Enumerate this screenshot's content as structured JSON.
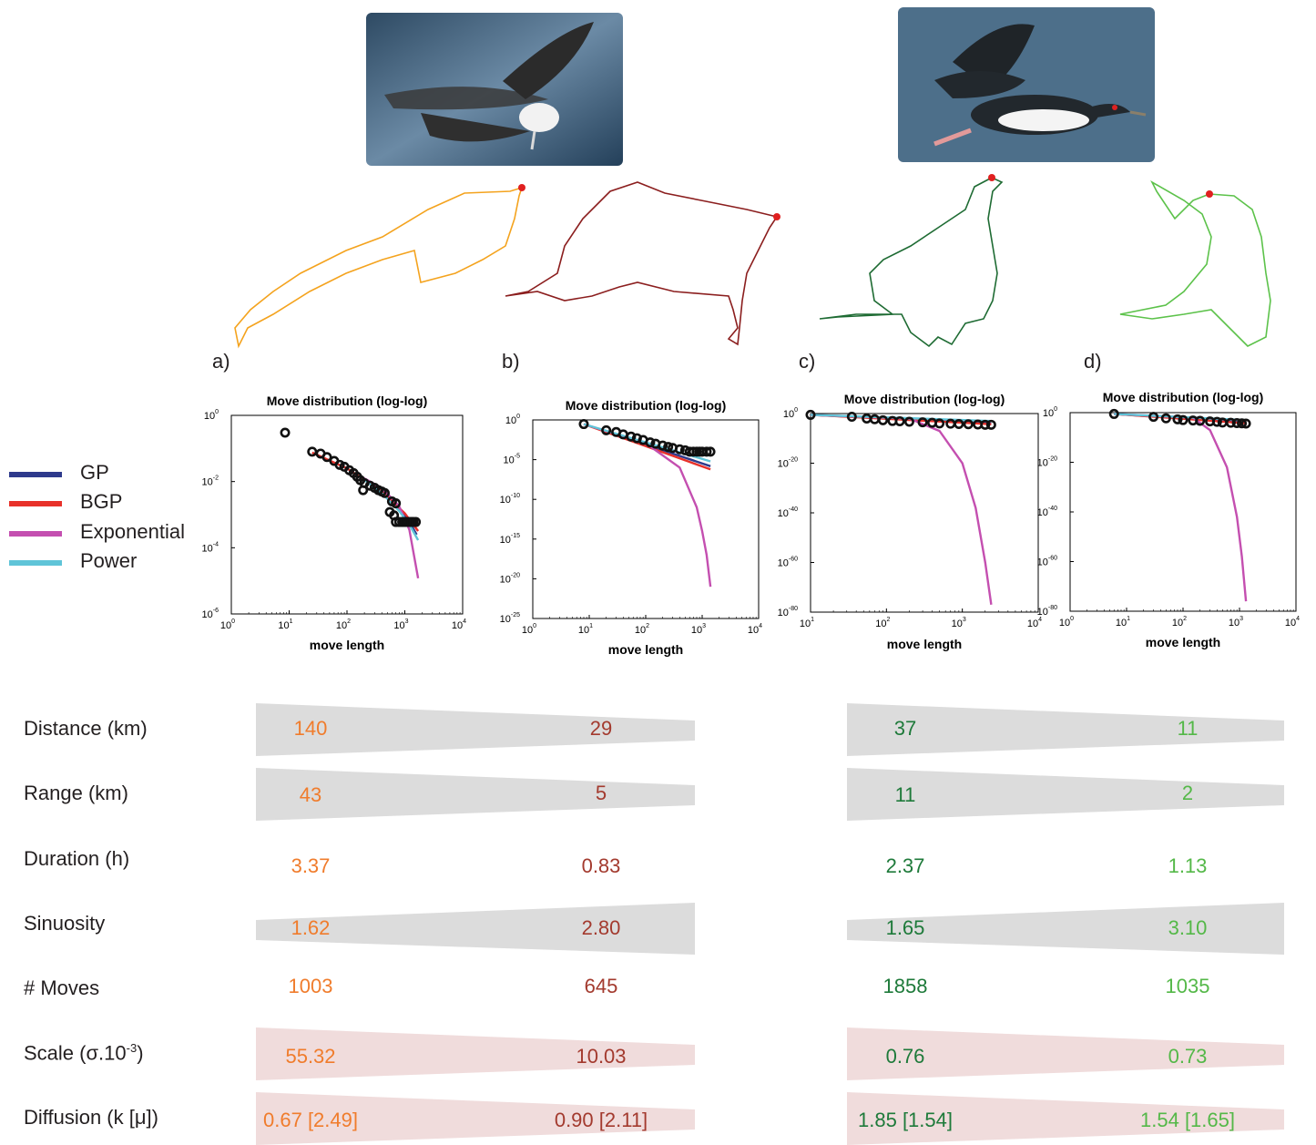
{
  "panels": [
    "a)",
    "b)",
    "c)",
    "d)"
  ],
  "legend": [
    {
      "label": "GP",
      "color": "#2e3a8c"
    },
    {
      "label": "BGP",
      "color": "#e8312a"
    },
    {
      "label": "Exponential",
      "color": "#c44fb0"
    },
    {
      "label": "Power",
      "color": "#5fc4d8"
    }
  ],
  "track_colors": [
    "#f4a31e",
    "#8b1e1e",
    "#1e6b33",
    "#5cc24a"
  ],
  "chart_data": [
    {
      "type": "scatter",
      "panel": "a)",
      "title": "Move distribution (log-log)",
      "xlabel": "move length",
      "ylabel": "",
      "xscale": "log",
      "yscale": "log",
      "xlim": [
        1,
        10000
      ],
      "ylim": [
        1e-06,
        1
      ],
      "xticks": [
        "10^0",
        "10^1",
        "10^2",
        "10^3",
        "10^4"
      ],
      "yticks": [
        "10^0",
        "10^-2",
        "10^-4",
        "10^-6"
      ],
      "points": [
        [
          8.5,
          0.3
        ],
        [
          25,
          0.08
        ],
        [
          35,
          0.07
        ],
        [
          45,
          0.055
        ],
        [
          60,
          0.042
        ],
        [
          75,
          0.032
        ],
        [
          90,
          0.028
        ],
        [
          110,
          0.022
        ],
        [
          130,
          0.018
        ],
        [
          150,
          0.014
        ],
        [
          170,
          0.011
        ],
        [
          200,
          0.009
        ],
        [
          250,
          0.0075
        ],
        [
          300,
          0.0065
        ],
        [
          350,
          0.0055
        ],
        [
          400,
          0.005
        ],
        [
          450,
          0.0045
        ],
        [
          190,
          0.0055
        ],
        [
          600,
          0.0025
        ],
        [
          700,
          0.0022
        ],
        [
          550,
          0.0012
        ],
        [
          650,
          0.00095
        ],
        [
          700,
          0.0006
        ],
        [
          800,
          0.0006
        ],
        [
          900,
          0.0006
        ],
        [
          1000,
          0.0006
        ],
        [
          1100,
          0.0006
        ],
        [
          1200,
          0.0006
        ],
        [
          1300,
          0.0006
        ],
        [
          1400,
          0.0006
        ],
        [
          1550,
          0.0006
        ]
      ],
      "series": [
        {
          "name": "GP",
          "x": [
            190,
            400,
            800,
            1200,
            1600
          ],
          "y": [
            0.012,
            0.0055,
            0.0016,
            0.0006,
            0.00025
          ]
        },
        {
          "name": "BGP",
          "x": [
            25,
            100,
            400,
            1000,
            1700
          ],
          "y": [
            0.075,
            0.025,
            0.005,
            0.0011,
            0.00032
          ]
        },
        {
          "name": "Exponential",
          "x": [
            190,
            400,
            800,
            1200,
            1700
          ],
          "y": [
            0.013,
            0.0065,
            0.0018,
            0.00035,
            1.2e-05
          ]
        },
        {
          "name": "Power",
          "x": [
            190,
            400,
            800,
            1200,
            1700
          ],
          "y": [
            0.012,
            0.0045,
            0.0013,
            0.0005,
            0.00017
          ]
        }
      ]
    },
    {
      "type": "scatter",
      "panel": "b)",
      "title": "Move distribution (log-log)",
      "xlabel": "move length",
      "ylabel": "",
      "xscale": "log",
      "yscale": "log",
      "xlim": [
        1,
        10000
      ],
      "ylim": [
        1e-25,
        1
      ],
      "xticks": [
        "10^0",
        "10^1",
        "10^2",
        "10^3",
        "10^4"
      ],
      "yticks": [
        "10^0",
        "10^-5",
        "10^-10",
        "10^-15",
        "10^-20",
        "10^-25"
      ],
      "points": [
        [
          8,
          0.3
        ],
        [
          20,
          0.05
        ],
        [
          30,
          0.03
        ],
        [
          40,
          0.015
        ],
        [
          55,
          0.008
        ],
        [
          70,
          0.005
        ],
        [
          90,
          0.003
        ],
        [
          120,
          0.0015
        ],
        [
          150,
          0.001
        ],
        [
          200,
          0.0006
        ],
        [
          250,
          0.0004
        ],
        [
          300,
          0.0003
        ],
        [
          400,
          0.0002
        ],
        [
          500,
          0.00015
        ],
        [
          600,
          0.0001
        ],
        [
          700,
          0.0001
        ],
        [
          800,
          0.0001
        ],
        [
          900,
          0.0001
        ],
        [
          1000,
          0.0001
        ],
        [
          1200,
          0.0001
        ],
        [
          1400,
          0.0001
        ]
      ],
      "series": [
        {
          "name": "GP",
          "x": [
            8,
            100,
            1400
          ],
          "y": [
            0.3,
            0.0008,
            1.5e-06
          ]
        },
        {
          "name": "BGP",
          "x": [
            8,
            100,
            1400
          ],
          "y": [
            0.3,
            0.0005,
            6e-07
          ]
        },
        {
          "name": "Exponential",
          "x": [
            8,
            100,
            400,
            800,
            1000,
            1200,
            1400
          ],
          "y": [
            0.3,
            0.0012,
            1e-06,
            1e-11,
            1e-14,
            1e-17,
            1e-21
          ]
        },
        {
          "name": "Power",
          "x": [
            8,
            100,
            1400
          ],
          "y": [
            0.3,
            0.0015,
            6e-06
          ]
        }
      ]
    },
    {
      "type": "scatter",
      "panel": "c)",
      "title": "Move distribution (log-log)",
      "xlabel": "move length",
      "ylabel": "",
      "xscale": "log",
      "yscale": "log",
      "xlim": [
        10,
        10000
      ],
      "ylim": [
        1e-80,
        1
      ],
      "xticks": [
        "10^1",
        "10^2",
        "10^3",
        "10^4"
      ],
      "yticks": [
        "10^0",
        "10^-20",
        "10^-40",
        "10^-60",
        "10^-80"
      ],
      "points": [
        [
          10,
          0.3
        ],
        [
          35,
          0.05
        ],
        [
          55,
          0.01
        ],
        [
          70,
          0.005
        ],
        [
          90,
          0.002
        ],
        [
          120,
          0.001
        ],
        [
          150,
          0.0008
        ],
        [
          200,
          0.0005
        ],
        [
          300,
          0.0003
        ],
        [
          400,
          0.0002
        ],
        [
          500,
          0.0001
        ],
        [
          700,
          8e-05
        ],
        [
          900,
          6e-05
        ],
        [
          1200,
          5e-05
        ],
        [
          1600,
          4e-05
        ],
        [
          2000,
          3e-05
        ],
        [
          2400,
          3e-05
        ]
      ],
      "series": [
        {
          "name": "GP",
          "x": [
            10,
            2400
          ],
          "y": [
            0.3,
            0.0001
          ]
        },
        {
          "name": "BGP",
          "x": [
            10,
            2400
          ],
          "y": [
            0.3,
            5e-05
          ]
        },
        {
          "name": "Exponential",
          "x": [
            10,
            200,
            500,
            1000,
            1500,
            2000,
            2400
          ],
          "y": [
            0.3,
            0.01,
            1e-07,
            1e-20,
            1e-38,
            1e-60,
            1e-77
          ]
        },
        {
          "name": "Power",
          "x": [
            10,
            2400
          ],
          "y": [
            0.3,
            0.001
          ]
        }
      ]
    },
    {
      "type": "scatter",
      "panel": "d)",
      "title": "Move distribution (log-log)",
      "xlabel": "move length",
      "ylabel": "",
      "xscale": "log",
      "yscale": "log",
      "xlim": [
        1,
        10000
      ],
      "ylim": [
        1e-80,
        1
      ],
      "xticks": [
        "10^0",
        "10^1",
        "10^2",
        "10^3",
        "10^4"
      ],
      "yticks": [
        "10^0",
        "10^-20",
        "10^-40",
        "10^-60",
        "10^-80"
      ],
      "points": [
        [
          6,
          0.3
        ],
        [
          30,
          0.02
        ],
        [
          50,
          0.005
        ],
        [
          80,
          0.002
        ],
        [
          100,
          0.001
        ],
        [
          150,
          0.0007
        ],
        [
          200,
          0.0005
        ],
        [
          300,
          0.0003
        ],
        [
          400,
          0.0002
        ],
        [
          500,
          0.0001
        ],
        [
          700,
          8e-05
        ],
        [
          900,
          6e-05
        ],
        [
          1100,
          5e-05
        ],
        [
          1300,
          4e-05
        ]
      ],
      "series": [
        {
          "name": "GP",
          "x": [
            6,
            1300
          ],
          "y": [
            0.3,
            0.0001
          ]
        },
        {
          "name": "BGP",
          "x": [
            6,
            1300
          ],
          "y": [
            0.3,
            5e-05
          ]
        },
        {
          "name": "Exponential",
          "x": [
            6,
            150,
            300,
            600,
            900,
            1100,
            1300
          ],
          "y": [
            0.3,
            0.01,
            1e-07,
            1e-22,
            1e-42,
            1e-58,
            1e-76
          ]
        },
        {
          "name": "Power",
          "x": [
            6,
            1300
          ],
          "y": [
            0.3,
            0.001
          ]
        }
      ]
    }
  ],
  "stats": [
    {
      "label": "Distance (km)",
      "shape": "decreasing",
      "fill": "#dcdcdc",
      "values": [
        "140",
        "29",
        "37",
        "11"
      ]
    },
    {
      "label": "Range (km)",
      "shape": "decreasing",
      "fill": "#dcdcdc",
      "values": [
        "43",
        "5",
        "11",
        "2"
      ]
    },
    {
      "label": "Duration (h)",
      "shape": "none",
      "fill": "",
      "values": [
        "3.37",
        "0.83",
        "2.37",
        "1.13"
      ]
    },
    {
      "label": "Sinuosity",
      "shape": "increasing",
      "fill": "#dcdcdc",
      "values": [
        "1.62",
        "2.80",
        "1.65",
        "3.10"
      ]
    },
    {
      "label": "# Moves",
      "shape": "none",
      "fill": "",
      "values": [
        "1003",
        "645",
        "1858",
        "1035"
      ]
    },
    {
      "label": "Scale (σ.10",
      "label_sup": "-3",
      "label_end": ")",
      "shape": "decreasing",
      "fill": "#f0dcdc",
      "values": [
        "55.32",
        "10.03",
        "0.76",
        "0.73"
      ]
    },
    {
      "label": "Diffusion (k [μ])",
      "shape": "decreasing",
      "fill": "#f0dcdc",
      "values": [
        "0.67 [2.49]",
        "0.90 [2.11]",
        "1.85 [1.54]",
        "1.54 [1.65]"
      ]
    }
  ],
  "stat_colors": [
    "#f07c2c",
    "#a33a2e",
    "#1e7a3a",
    "#54b848"
  ]
}
